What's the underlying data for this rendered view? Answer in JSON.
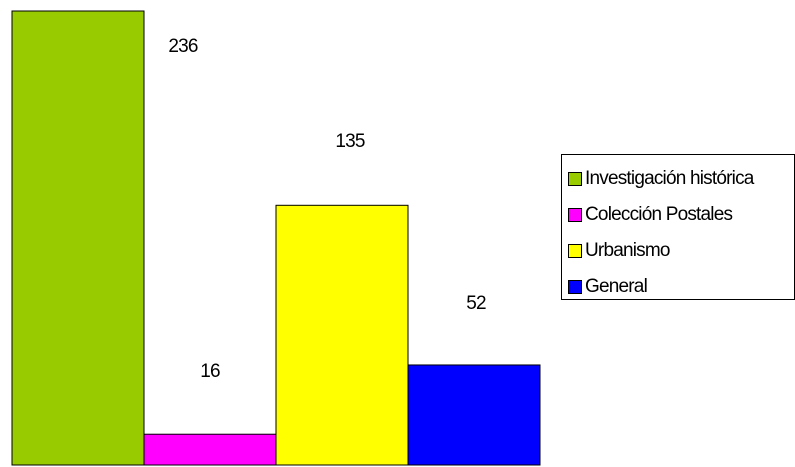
{
  "chart_data": {
    "type": "bar",
    "categories": [
      "Investigación histórica",
      "Colección Postales",
      "Urbanismo",
      "General"
    ],
    "values": [
      236,
      16,
      135,
      52
    ],
    "colors": [
      "#99cc00",
      "#ff00ff",
      "#ffff00",
      "#0000ff"
    ],
    "data_labels": [
      "236",
      "16",
      "135",
      "52"
    ],
    "legend_position": "right",
    "ylim": [
      0,
      236
    ],
    "grid": false
  },
  "legend": {
    "items": [
      {
        "label": "Investigación histórica",
        "color": "#99cc00"
      },
      {
        "label": "Colección Postales",
        "color": "#ff00ff"
      },
      {
        "label": "Urbanismo",
        "color": "#ffff00"
      },
      {
        "label": "General",
        "color": "#0000ff"
      }
    ]
  }
}
